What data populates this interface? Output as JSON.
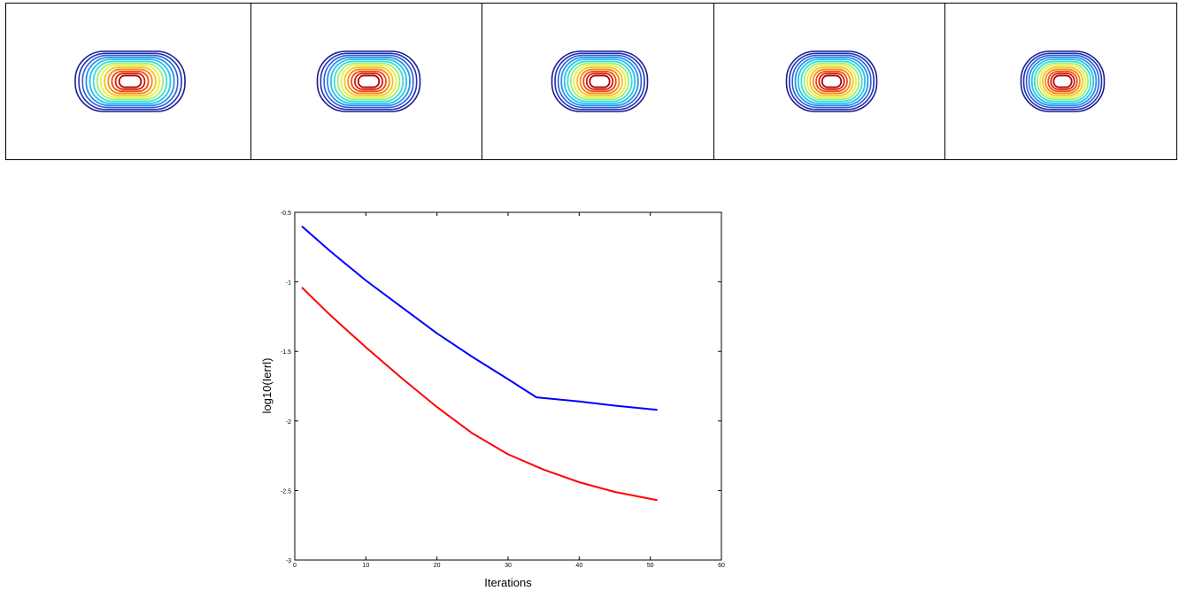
{
  "contour_panels": [
    {
      "name": "contour-panel-1",
      "rx": 58,
      "ry": 32
    },
    {
      "name": "contour-panel-2",
      "rx": 54,
      "ry": 32
    },
    {
      "name": "contour-panel-3",
      "rx": 50,
      "ry": 32
    },
    {
      "name": "contour-panel-4",
      "rx": 47,
      "ry": 32
    },
    {
      "name": "contour-panel-5",
      "rx": 43,
      "ry": 32
    }
  ],
  "contour_colors": [
    "#1b1b8e",
    "#1f2fb8",
    "#2a5ed6",
    "#2f8fe8",
    "#26c2ee",
    "#38e0d8",
    "#9ff070",
    "#e8f040",
    "#f8c020",
    "#f58a14",
    "#ec4a10",
    "#d61808",
    "#b00000",
    "#ffffff"
  ],
  "chart_data": {
    "type": "line",
    "title": "",
    "xlabel": "Iterations",
    "ylabel": "log10(Ierrl)",
    "xlim": [
      0,
      60
    ],
    "ylim": [
      -3,
      -0.5
    ],
    "xticks": [
      0,
      10,
      20,
      30,
      40,
      50,
      60
    ],
    "yticks": [
      -0.5,
      -1,
      -1.5,
      -2,
      -2.5,
      -3
    ],
    "grid": false,
    "series": [
      {
        "color": "#0000ff",
        "x": [
          1,
          5,
          10,
          15,
          20,
          25,
          30,
          34,
          40,
          45,
          51
        ],
        "y": [
          -0.6,
          -0.78,
          -0.99,
          -1.18,
          -1.37,
          -1.54,
          -1.7,
          -1.83,
          -1.86,
          -1.89,
          -1.92
        ]
      },
      {
        "color": "#ff0000",
        "x": [
          1,
          5,
          10,
          15,
          20,
          25,
          30,
          35,
          40,
          45,
          51
        ],
        "y": [
          -1.04,
          -1.24,
          -1.47,
          -1.69,
          -1.9,
          -2.09,
          -2.24,
          -2.35,
          -2.44,
          -2.51,
          -2.57
        ]
      }
    ]
  }
}
